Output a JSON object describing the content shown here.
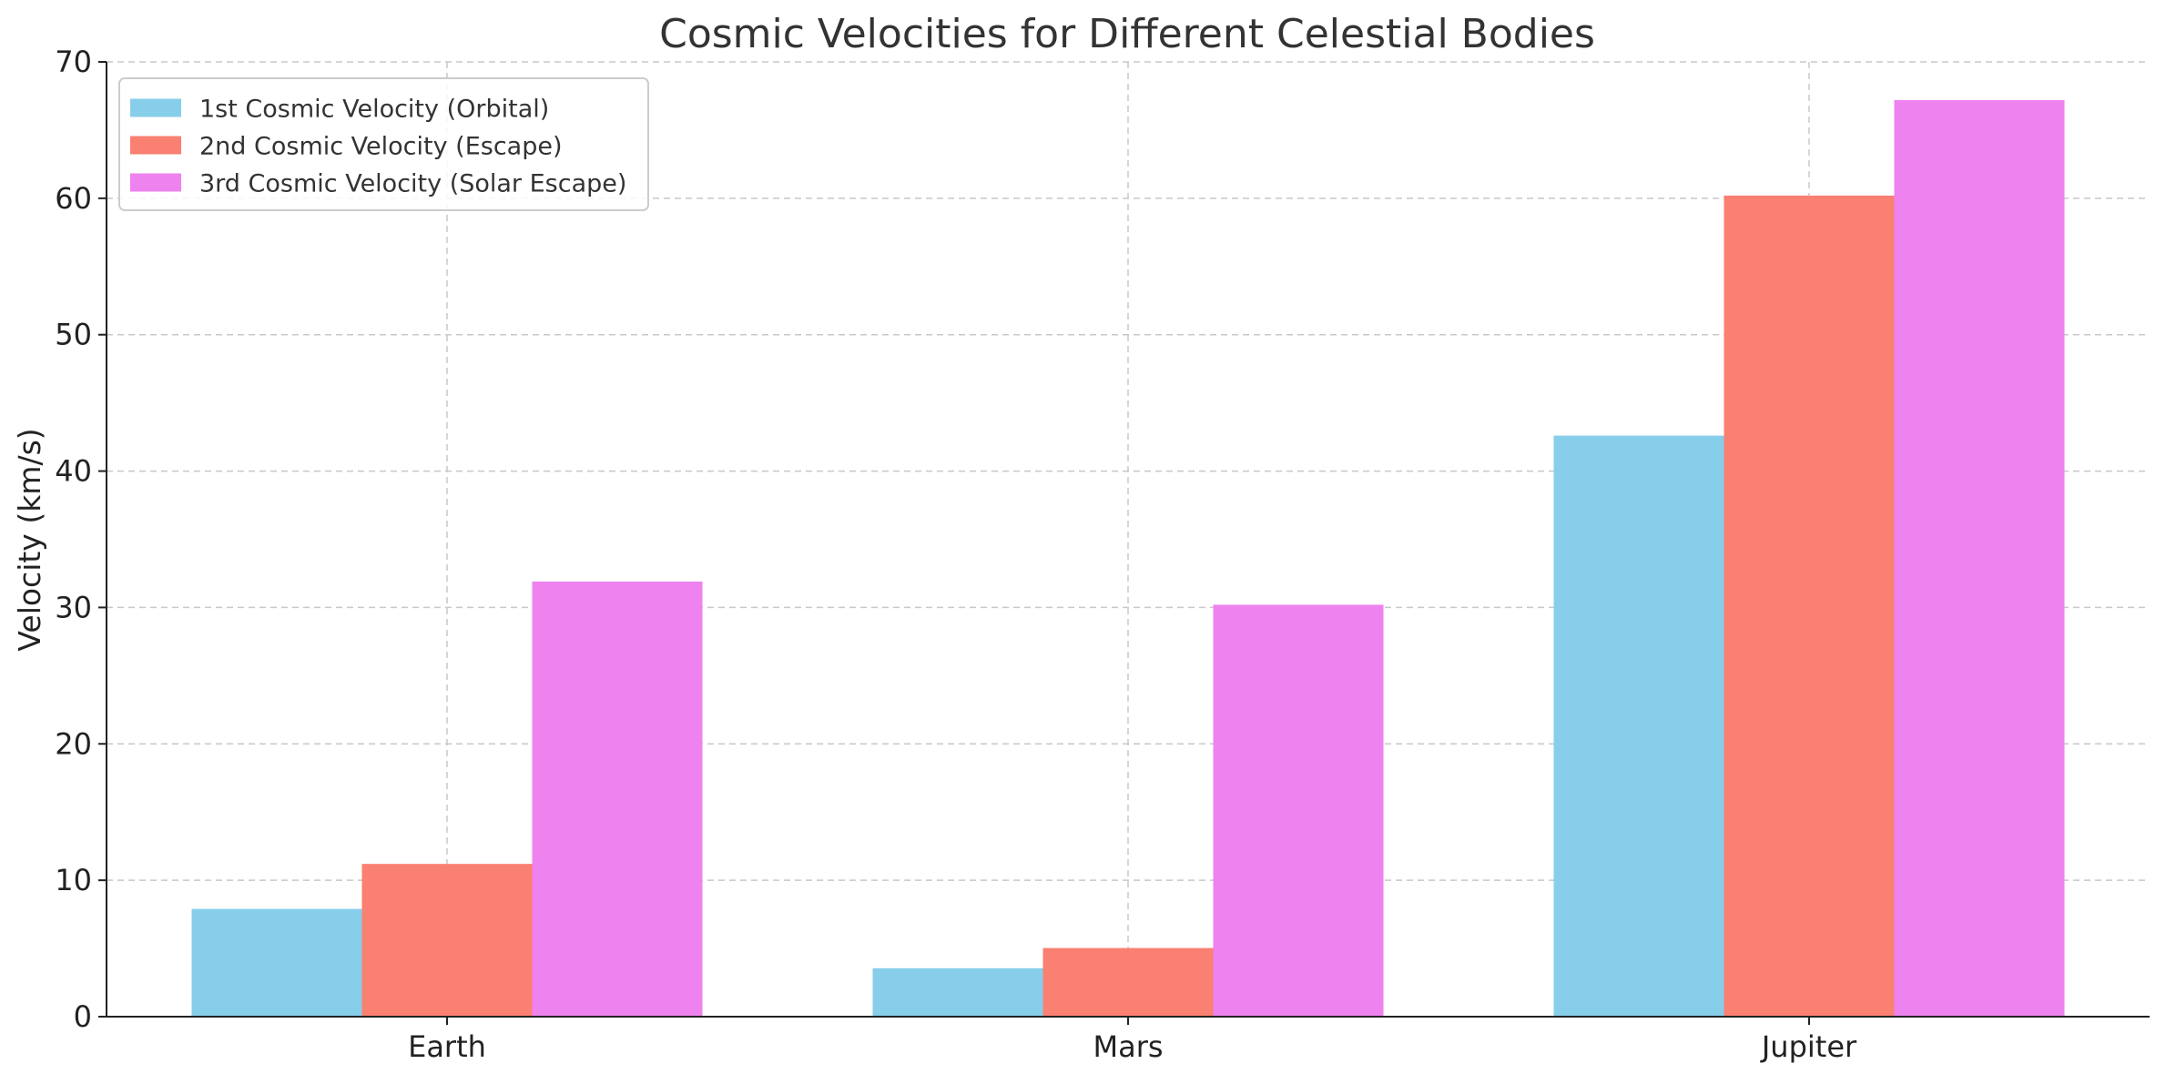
{
  "chart_data": {
    "type": "bar",
    "title": "Cosmic Velocities for Different Celestial Bodies",
    "xlabel": "",
    "ylabel": "Velocity (km/s)",
    "categories": [
      "Earth",
      "Mars",
      "Jupiter"
    ],
    "series": [
      {
        "name": "1st Cosmic Velocity (Orbital)",
        "color": "#87ceeb",
        "values": [
          7.9,
          3.55,
          42.6
        ]
      },
      {
        "name": "2nd Cosmic Velocity (Escape)",
        "color": "#fa8072",
        "values": [
          11.2,
          5.03,
          60.2
        ]
      },
      {
        "name": "3rd Cosmic Velocity (Solar Escape)",
        "color": "#ee82ee",
        "values": [
          31.9,
          30.2,
          67.2
        ]
      }
    ],
    "ylim": [
      0,
      70
    ],
    "yticks": [
      0,
      10,
      20,
      30,
      40,
      50,
      60,
      70
    ],
    "grid": true,
    "legend_position": "top-left"
  }
}
